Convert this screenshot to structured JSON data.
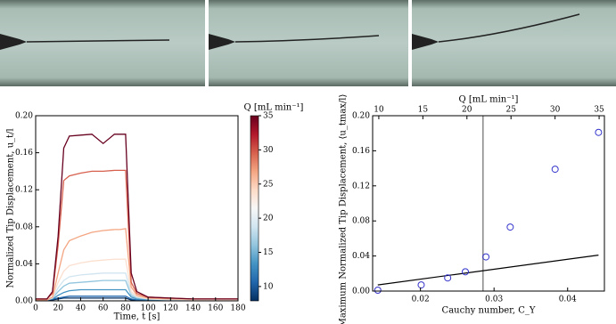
{
  "chart_data": [
    {
      "type": "line",
      "xlabel": "Time, t [s]",
      "ylabel": "Normalized Tip Displacement, u_t/l",
      "x": [
        0,
        10,
        15,
        20,
        25,
        30,
        40,
        50,
        60,
        70,
        75,
        80,
        85,
        90,
        100,
        120,
        140,
        160,
        180
      ],
      "xlim": [
        0,
        180
      ],
      "xticks": [
        0,
        20,
        40,
        60,
        80,
        100,
        120,
        140,
        160,
        180
      ],
      "ylim": [
        0,
        0.2
      ],
      "yticks": [
        {
          "value": 0,
          "label": "0.00"
        },
        0.04,
        0.08,
        0.12,
        0.16,
        {
          "value": 0.2,
          "label": "0.20"
        }
      ],
      "series": [
        {
          "color": "#053061",
          "values": [
            0.001,
            0.001,
            0.001,
            0.002,
            0.003,
            0.003,
            0.003,
            0.003,
            0.003,
            0.003,
            0.003,
            0.003,
            0.001,
            0.001,
            0.001,
            0.001,
            0.001,
            0.001,
            0.001
          ]
        },
        {
          "color": "#2166ac",
          "values": [
            0.001,
            0.001,
            0.002,
            0.003,
            0.004,
            0.005,
            0.005,
            0.005,
            0.005,
            0.005,
            0.005,
            0.005,
            0.002,
            0.001,
            0.001,
            0.001,
            0.001,
            0.001,
            0.001
          ]
        },
        {
          "color": "#4393c3",
          "values": [
            0.001,
            0.001,
            0.002,
            0.006,
            0.009,
            0.011,
            0.012,
            0.012,
            0.012,
            0.012,
            0.012,
            0.012,
            0.004,
            0.002,
            0.001,
            0.001,
            0.001,
            0.001,
            0.001
          ]
        },
        {
          "color": "#92c5de",
          "values": [
            0.001,
            0.001,
            0.003,
            0.01,
            0.016,
            0.019,
            0.02,
            0.021,
            0.022,
            0.022,
            0.022,
            0.022,
            0.006,
            0.003,
            0.002,
            0.001,
            0.001,
            0.001,
            0.001
          ]
        },
        {
          "color": "#d1e5f0",
          "values": [
            0.001,
            0.001,
            0.003,
            0.014,
            0.022,
            0.026,
            0.028,
            0.029,
            0.03,
            0.03,
            0.03,
            0.03,
            0.008,
            0.004,
            0.002,
            0.001,
            0.001,
            0.001,
            0.001
          ]
        },
        {
          "color": "#fbe0d0",
          "values": [
            0.001,
            0.001,
            0.004,
            0.02,
            0.032,
            0.038,
            0.041,
            0.043,
            0.044,
            0.045,
            0.045,
            0.045,
            0.01,
            0.005,
            0.002,
            0.002,
            0.001,
            0.001,
            0.001
          ]
        },
        {
          "color": "#f4a582",
          "values": [
            0.001,
            0.001,
            0.004,
            0.03,
            0.055,
            0.065,
            0.07,
            0.074,
            0.076,
            0.077,
            0.077,
            0.078,
            0.015,
            0.006,
            0.003,
            0.002,
            0.002,
            0.002,
            0.002
          ]
        },
        {
          "color": "#d6604d",
          "values": [
            0.002,
            0.002,
            0.008,
            0.06,
            0.13,
            0.135,
            0.138,
            0.14,
            0.14,
            0.141,
            0.141,
            0.141,
            0.02,
            0.008,
            0.004,
            0.003,
            0.002,
            0.002,
            0.002
          ]
        },
        {
          "color": "#67001f",
          "values": [
            0.002,
            0.002,
            0.01,
            0.07,
            0.165,
            0.178,
            0.179,
            0.18,
            0.17,
            0.18,
            0.18,
            0.18,
            0.03,
            0.01,
            0.004,
            0.003,
            0.002,
            0.002,
            0.002
          ]
        }
      ],
      "colorbar": {
        "label": "Q [mL min⁻¹]",
        "lim": [
          7.9,
          35
        ],
        "ticks": [
          10,
          15,
          20,
          25,
          30,
          35
        ],
        "colors": [
          "#053061",
          "#2166ac",
          "#4393c3",
          "#92c5de",
          "#d1e5f0",
          "#f7f7f7",
          "#fddbc7",
          "#f4a582",
          "#d6604d",
          "#b2182b",
          "#67001f"
        ]
      }
    },
    {
      "type": "scatter",
      "xlabel": "Cauchy number, C_Y",
      "ylabel": "Maximum Normalized Tip Displacement, ⟨u_tmax/l⟩",
      "x2label": "Q [mL min⁻¹]",
      "x": [
        0.0142,
        0.0201,
        0.0237,
        0.0261,
        0.0289,
        0.0322,
        0.0383,
        0.0442
      ],
      "values": [
        0.001,
        0.007,
        0.015,
        0.022,
        0.039,
        0.073,
        0.139,
        0.181
      ],
      "color": "#3333cc",
      "xlim": [
        0.0135,
        0.045
      ],
      "xticks": [
        0.02,
        0.03,
        0.04
      ],
      "x2lim": [
        9.3,
        35.6
      ],
      "x2ticks": [
        10,
        15,
        20,
        25,
        30,
        35
      ],
      "ylim": [
        0,
        0.2
      ],
      "yticks": [
        {
          "value": 0,
          "label": "0.00"
        },
        0.04,
        0.08,
        0.12,
        0.16,
        {
          "value": 0.2,
          "label": "0.20"
        }
      ],
      "fit_line": {
        "x": [
          0.0142,
          0.0442
        ],
        "y": [
          0.007,
          0.041
        ],
        "color": "#000000"
      },
      "vline": {
        "x": 0.0285,
        "color": "#888888"
      }
    }
  ]
}
